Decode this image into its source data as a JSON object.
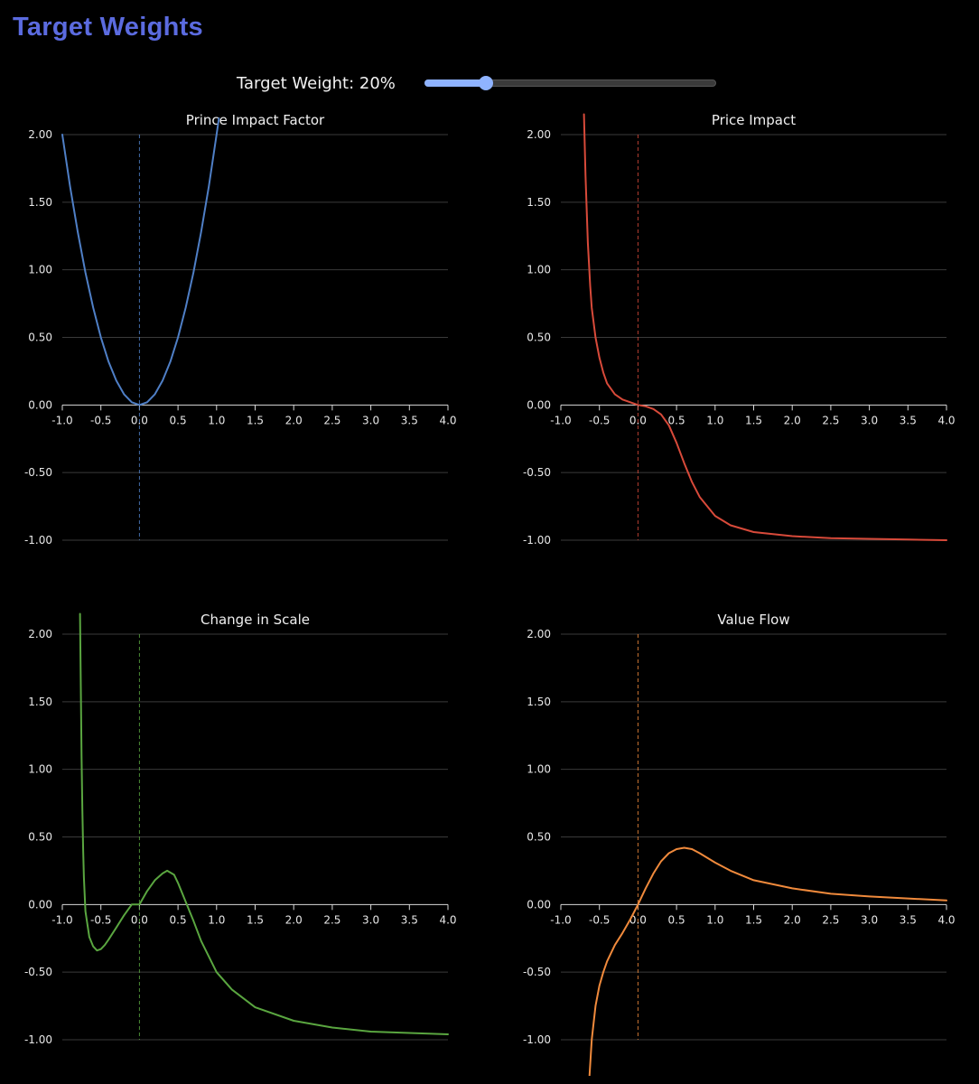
{
  "app": {
    "title": "Target Weights"
  },
  "control": {
    "label_prefix": "Target Weight: ",
    "value_text": "20%",
    "value": 0.2,
    "slider_position": 0.21
  },
  "colors": {
    "title": "#5b6be0",
    "slider": "#8fb3ff",
    "background": "#000000"
  },
  "chart_data": [
    {
      "type": "line",
      "title": "Prince Impact Factor",
      "color": "#4f7fc6",
      "xlim": [
        -1.0,
        4.0
      ],
      "ylim": [
        -1.0,
        2.0
      ],
      "x_ticks": [
        "-1.0",
        "-0.5",
        "0.0",
        "0.5",
        "1.0",
        "1.5",
        "2.0",
        "2.5",
        "3.0",
        "3.5",
        "4.0"
      ],
      "y_ticks": [
        "2.00",
        "1.50",
        "1.00",
        "0.50",
        "0.00",
        "-0.50",
        "-1.00"
      ],
      "grid": true,
      "reference_line_x": 0.0,
      "series": [
        {
          "x": [
            -1.0,
            -0.9,
            -0.8,
            -0.7,
            -0.6,
            -0.5,
            -0.4,
            -0.3,
            -0.2,
            -0.1,
            0.0,
            0.1,
            0.2,
            0.3,
            0.4,
            0.5,
            0.6,
            0.7,
            0.8,
            0.9,
            1.0,
            1.03
          ],
          "y": [
            2.0,
            1.62,
            1.28,
            0.98,
            0.72,
            0.5,
            0.32,
            0.18,
            0.08,
            0.02,
            0.0,
            0.02,
            0.08,
            0.18,
            0.32,
            0.5,
            0.72,
            0.98,
            1.28,
            1.62,
            2.0,
            2.12
          ]
        }
      ]
    },
    {
      "type": "line",
      "title": "Price Impact",
      "color": "#d84a3a",
      "xlim": [
        -1.0,
        4.0
      ],
      "ylim": [
        -1.0,
        2.0
      ],
      "x_ticks": [
        "-1.0",
        "-0.5",
        "0.0",
        "0.5",
        "1.0",
        "1.5",
        "2.0",
        "2.5",
        "3.0",
        "3.5",
        "4.0"
      ],
      "y_ticks": [
        "2.00",
        "1.50",
        "1.00",
        "0.50",
        "0.00",
        "-0.50",
        "-1.00"
      ],
      "grid": true,
      "reference_line_x": 0.0,
      "series": [
        {
          "x": [
            -0.7,
            -0.68,
            -0.65,
            -0.62,
            -0.6,
            -0.55,
            -0.5,
            -0.45,
            -0.4,
            -0.3,
            -0.2,
            -0.1,
            0.0,
            0.1,
            0.2,
            0.3,
            0.4,
            0.5,
            0.6,
            0.7,
            0.8,
            1.0,
            1.2,
            1.5,
            2.0,
            2.5,
            3.0,
            3.5,
            4.0
          ],
          "y": [
            2.15,
            1.7,
            1.2,
            0.88,
            0.72,
            0.5,
            0.35,
            0.24,
            0.16,
            0.08,
            0.04,
            0.02,
            0.0,
            -0.01,
            -0.03,
            -0.07,
            -0.15,
            -0.28,
            -0.43,
            -0.57,
            -0.68,
            -0.82,
            -0.89,
            -0.94,
            -0.97,
            -0.985,
            -0.99,
            -0.995,
            -1.0
          ]
        }
      ]
    },
    {
      "type": "line",
      "title": "Change in Scale",
      "color": "#5aa640",
      "xlim": [
        -1.0,
        4.0
      ],
      "ylim": [
        -1.0,
        2.0
      ],
      "x_ticks": [
        "-1.0",
        "-0.5",
        "0.0",
        "0.5",
        "1.0",
        "1.5",
        "2.0",
        "2.5",
        "3.0",
        "3.5",
        "4.0"
      ],
      "y_ticks": [
        "2.00",
        "1.50",
        "1.00",
        "0.50",
        "0.00",
        "-0.50",
        "-1.00"
      ],
      "grid": true,
      "reference_line_x": 0.0,
      "series": [
        {
          "x": [
            -0.77,
            -0.76,
            -0.75,
            -0.74,
            -0.73,
            -0.72,
            -0.7,
            -0.65,
            -0.6,
            -0.55,
            -0.5,
            -0.45,
            -0.4,
            -0.3,
            -0.2,
            -0.1,
            0.0,
            0.1,
            0.2,
            0.3,
            0.36,
            0.45,
            0.5,
            0.6,
            0.7,
            0.8,
            1.0,
            1.2,
            1.5,
            2.0,
            2.5,
            3.0,
            3.5,
            4.0
          ],
          "y": [
            2.15,
            1.6,
            1.1,
            0.7,
            0.4,
            0.2,
            -0.05,
            -0.24,
            -0.31,
            -0.34,
            -0.33,
            -0.3,
            -0.26,
            -0.17,
            -0.08,
            0.0,
            0.0,
            0.1,
            0.18,
            0.23,
            0.25,
            0.22,
            0.16,
            0.02,
            -0.12,
            -0.27,
            -0.5,
            -0.63,
            -0.76,
            -0.86,
            -0.91,
            -0.94,
            -0.95,
            -0.96
          ]
        }
      ]
    },
    {
      "type": "line",
      "title": "Value Flow",
      "color": "#f08a3c",
      "xlim": [
        -1.0,
        4.0
      ],
      "ylim": [
        -1.0,
        2.0
      ],
      "x_ticks": [
        "-1.0",
        "-0.5",
        "0.0",
        "0.5",
        "1.0",
        "1.5",
        "2.0",
        "2.5",
        "3.0",
        "3.5",
        "4.0"
      ],
      "y_ticks": [
        "2.00",
        "1.50",
        "1.00",
        "0.50",
        "0.00",
        "-0.50",
        "-1.00"
      ],
      "grid": true,
      "reference_line_x": 0.0,
      "series": [
        {
          "x": [
            -0.63,
            -0.6,
            -0.55,
            -0.5,
            -0.45,
            -0.4,
            -0.3,
            -0.2,
            -0.1,
            0.0,
            0.1,
            0.2,
            0.3,
            0.4,
            0.5,
            0.6,
            0.7,
            0.8,
            1.0,
            1.2,
            1.5,
            2.0,
            2.5,
            3.0,
            3.5,
            4.0
          ],
          "y": [
            -1.28,
            -1.0,
            -0.75,
            -0.6,
            -0.5,
            -0.42,
            -0.3,
            -0.21,
            -0.11,
            0.0,
            0.12,
            0.23,
            0.32,
            0.38,
            0.41,
            0.42,
            0.41,
            0.38,
            0.31,
            0.25,
            0.18,
            0.12,
            0.08,
            0.06,
            0.045,
            0.03
          ]
        }
      ]
    }
  ]
}
